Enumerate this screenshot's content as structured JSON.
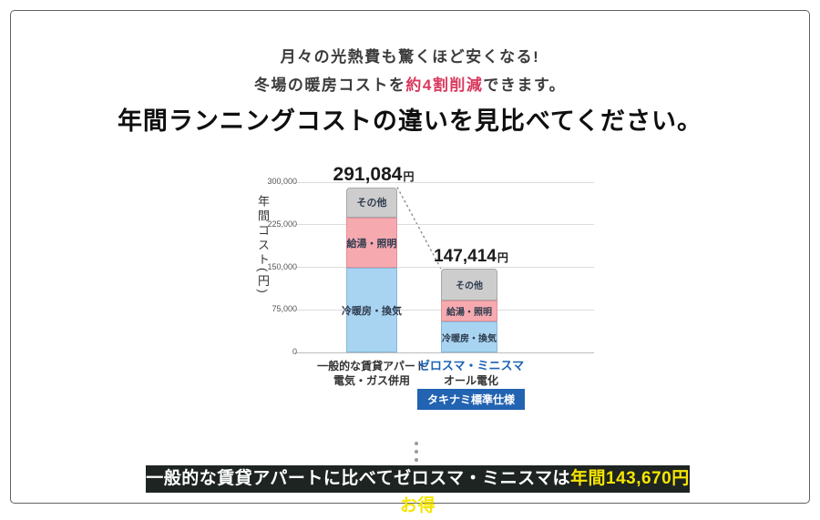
{
  "intro": {
    "line1": "月々の光熱費も驚くほど安くなる!",
    "line2_prefix": "冬場の暖房コストを",
    "line2_highlight": "約4割削減",
    "line2_suffix": "できます。",
    "highlight_color": "#d9385e"
  },
  "heading": "年間ランニングコストの違いを見比べてください。",
  "chart_data": {
    "type": "bar",
    "stacked": true,
    "title": "",
    "xlabel": "",
    "ylabel": "年間コスト(円)",
    "ylim": [
      0,
      300000
    ],
    "yticks": [
      0,
      75000,
      150000,
      225000,
      300000
    ],
    "ytick_labels": [
      "0",
      "75,000",
      "150,000",
      "225,000",
      "300,000"
    ],
    "grid": true,
    "legend_position": "none",
    "categories": [
      "一般的な賃貸アパート 電気・ガス併用",
      "ゼロスマ・ミニスマ オール電化"
    ],
    "series": [
      {
        "name": "冷暖房・換気",
        "color": "#a9d4f1",
        "border": "#85b7db",
        "values": [
          149000,
          54000
        ]
      },
      {
        "name": "給湯・照明",
        "color": "#f6aab0",
        "border": "#e39099",
        "values": [
          88000,
          37000
        ]
      },
      {
        "name": "その他",
        "color": "#cdcdcd",
        "border": "#a7a7a7",
        "values": [
          54084,
          56414
        ]
      }
    ],
    "totals": [
      291084,
      147414
    ],
    "totals_display": [
      {
        "value": "291,084",
        "unit": "円"
      },
      {
        "value": "147,414",
        "unit": "円"
      }
    ]
  },
  "xaxis": {
    "left": {
      "line1": "一般的な賃貸アパート",
      "line2": "電気・ガス併用"
    },
    "right": {
      "line1": "ゼロスマ・ミニスマ",
      "line1_color": "#1b62b5",
      "line2": "オール電化",
      "badge": "タキナミ標準仕様",
      "badge_bg": "#2263b2"
    }
  },
  "banner": {
    "text_white": "一般的な賃貸アパートに比べてゼロスマ・ミニスマは",
    "text_yellow": "年間143,670円お得",
    "bg": "#1d2422",
    "yellow": "#f6e500"
  }
}
